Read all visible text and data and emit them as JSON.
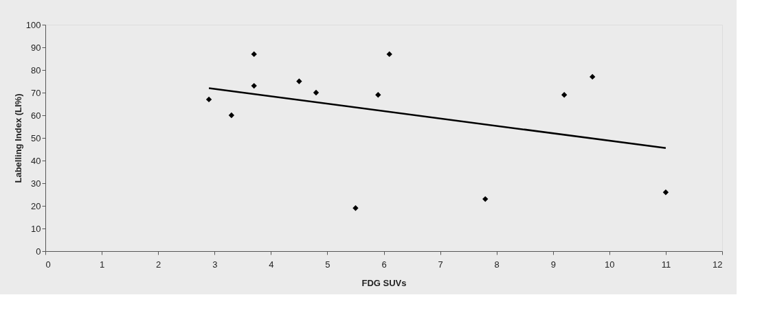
{
  "chart_data": {
    "type": "scatter",
    "xlabel": "FDG SUVs",
    "ylabel": "Labelling Index (LI%)",
    "series": [
      {
        "color": "#000000",
        "marker": "diamond",
        "x": [
          2.9,
          3.3,
          3.7,
          3.7,
          4.5,
          4.8,
          5.5,
          5.9,
          6.1,
          7.8,
          9.2,
          9.7,
          11
        ],
        "values": [
          67,
          60,
          87,
          73,
          75,
          70,
          19,
          69,
          87,
          23,
          69,
          77,
          26
        ]
      },
      {
        "type": "line",
        "color": "#000000",
        "marker": "none",
        "line_style": "solid",
        "x": [
          2.9,
          11
        ],
        "values": [
          72,
          45.5
        ]
      }
    ],
    "xlim": [
      0,
      12
    ],
    "xticks": [
      0,
      1,
      2,
      3,
      4,
      5,
      6,
      7,
      8,
      9,
      10,
      11,
      12
    ],
    "ylim": [
      0,
      100
    ],
    "yticks": [
      0,
      10,
      20,
      30,
      40,
      50,
      60,
      70,
      80,
      90,
      100
    ],
    "grid": false
  }
}
